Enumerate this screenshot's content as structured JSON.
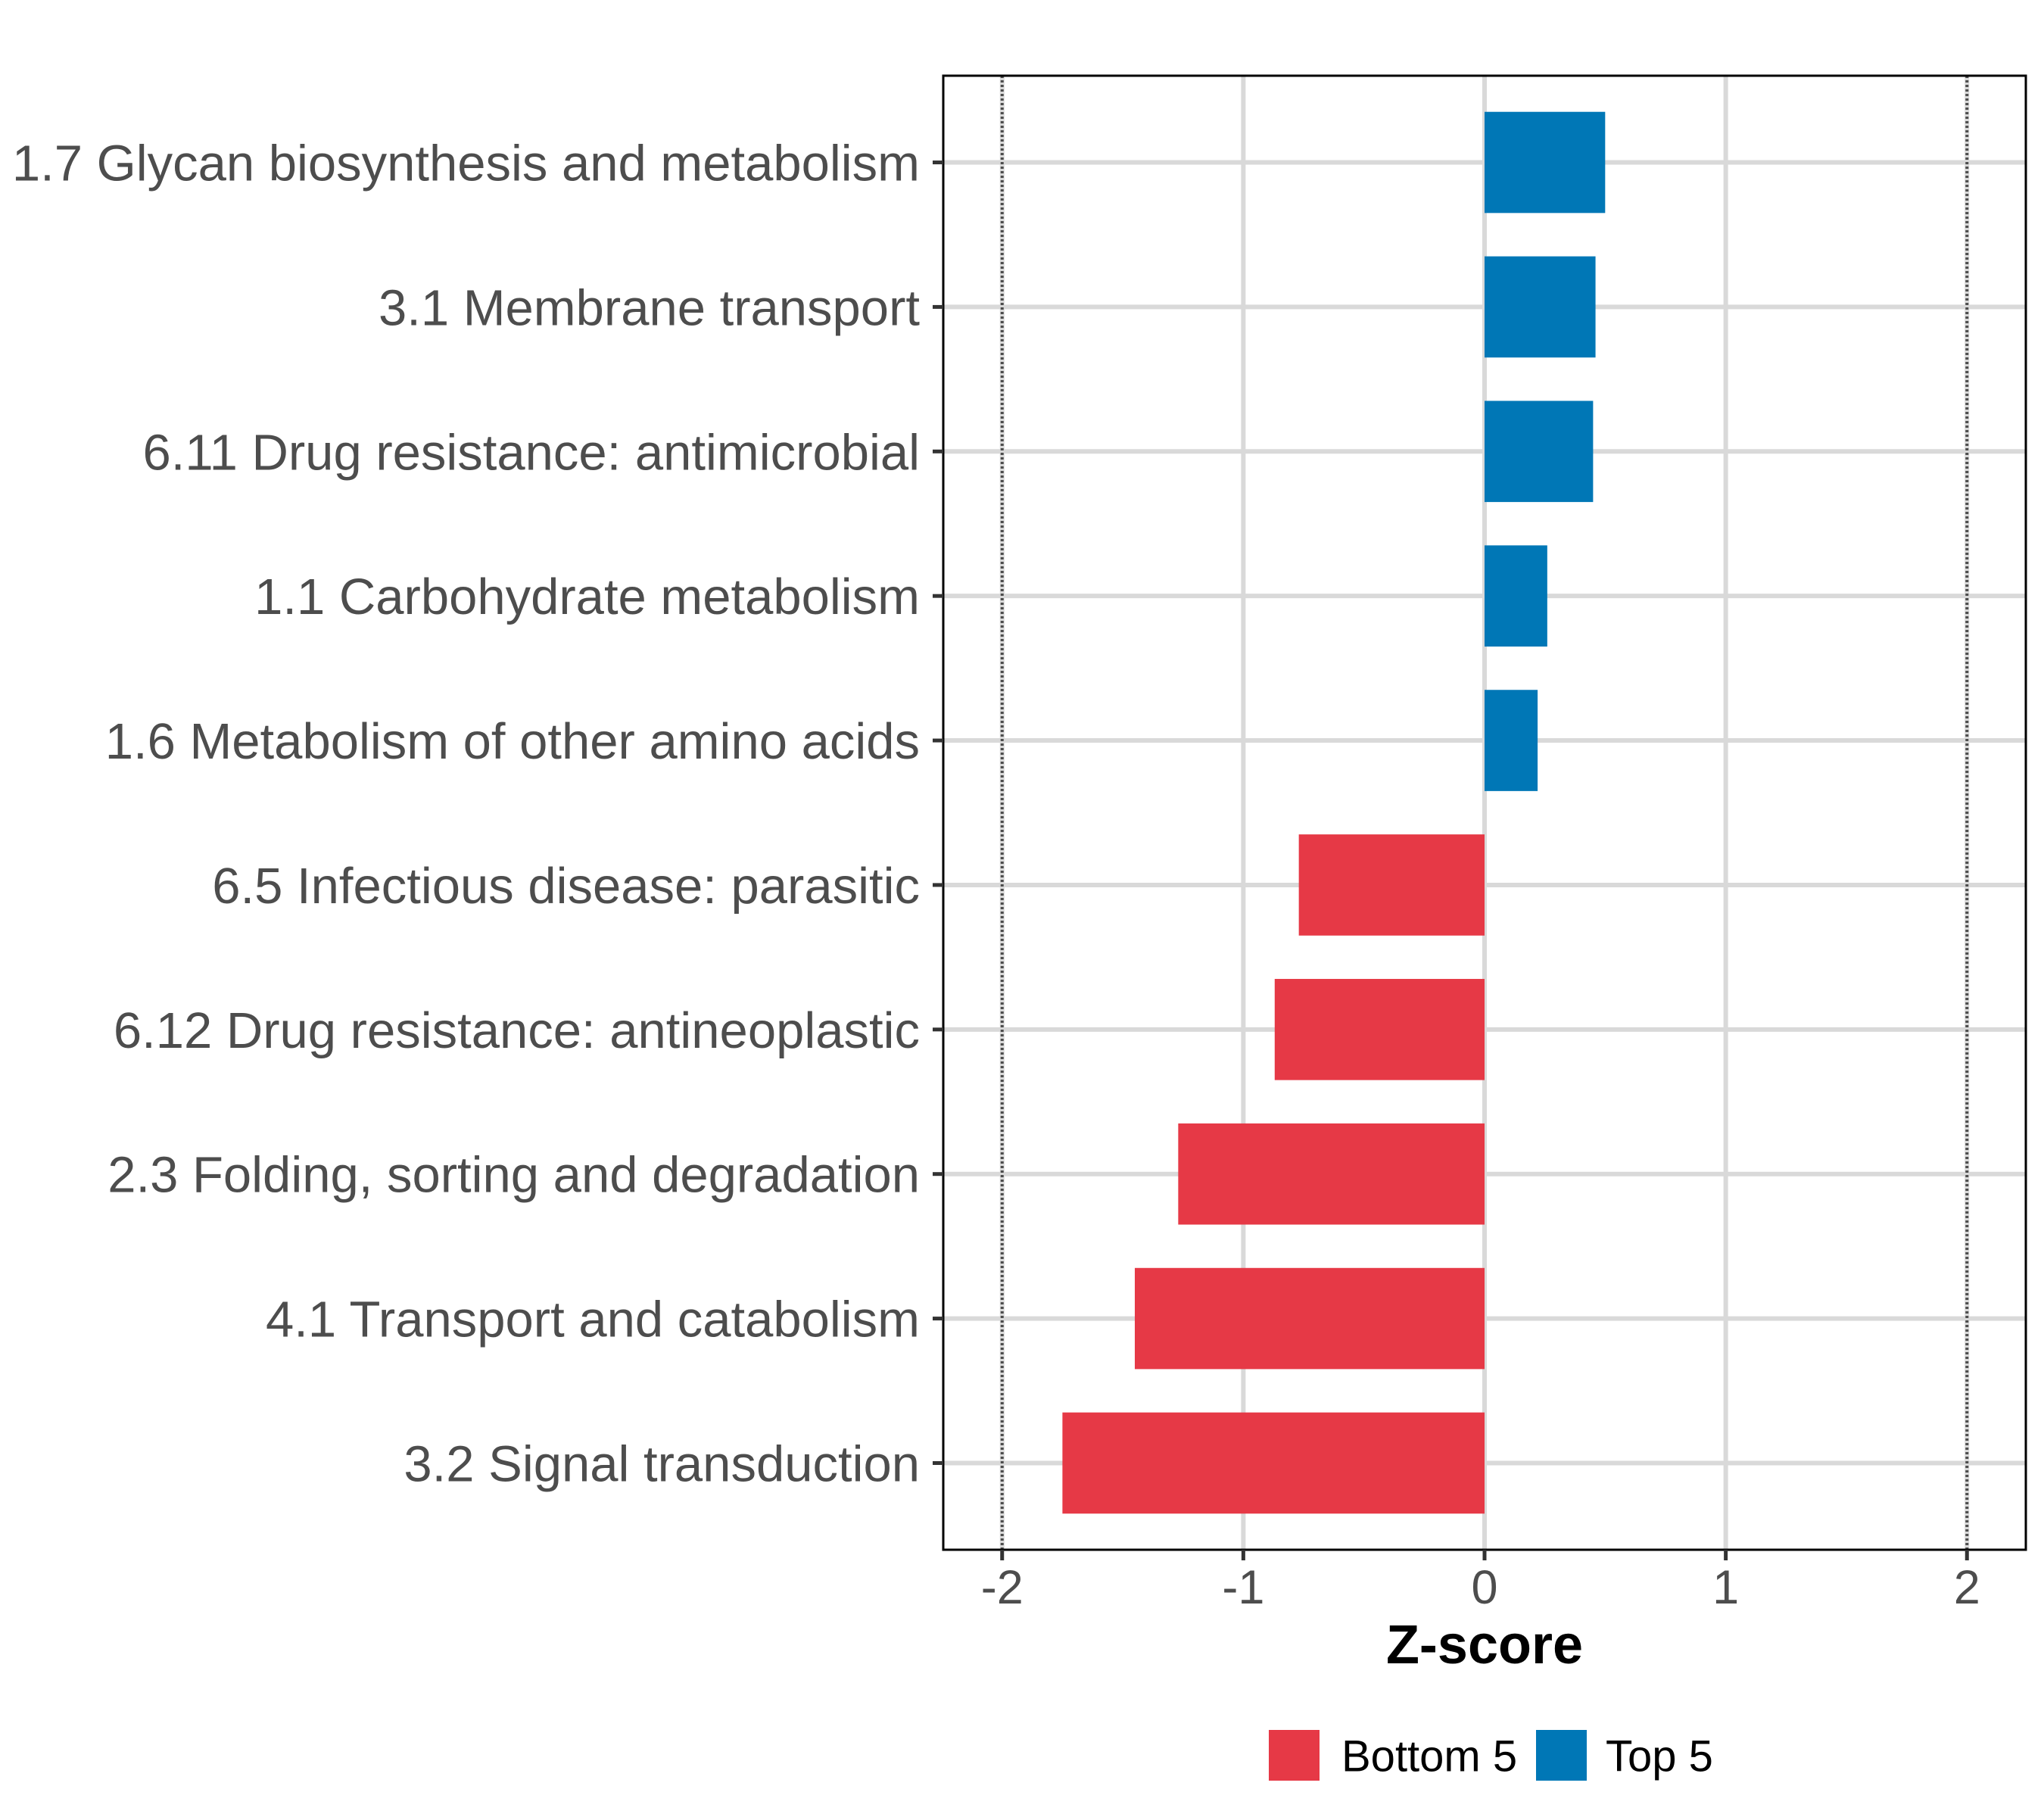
{
  "chart_data": {
    "type": "bar",
    "orientation": "horizontal",
    "title": "",
    "xlabel": "Z-score",
    "ylabel": "",
    "xlim": [
      -2.244,
      2.244
    ],
    "xticks": [
      -2,
      -1,
      0,
      1,
      2
    ],
    "xtick_labels": [
      "-2",
      "-1",
      "0",
      "1",
      "2"
    ],
    "reference_lines": [
      -2,
      2
    ],
    "grid": true,
    "categories": [
      "1.7 Glycan biosynthesis and metabolism",
      "3.1 Membrane transport",
      "6.11 Drug resistance: antimicrobial",
      "1.1 Carbohydrate metabolism",
      "1.6 Metabolism of other amino acids",
      "6.5 Infectious disease: parasitic",
      "6.12 Drug resistance: antineoplastic",
      "2.3 Folding, sorting and degradation",
      "4.1 Transport and catabolism",
      "3.2 Signal transduction"
    ],
    "values": [
      0.5,
      0.46,
      0.45,
      0.26,
      0.22,
      -0.77,
      -0.87,
      -1.27,
      -1.45,
      -1.75
    ],
    "groups": [
      "Top 5",
      "Top 5",
      "Top 5",
      "Top 5",
      "Top 5",
      "Bottom 5",
      "Bottom 5",
      "Bottom 5",
      "Bottom 5",
      "Bottom 5"
    ],
    "legend": {
      "position": "bottom",
      "entries": [
        {
          "label": "Bottom 5",
          "color": "#E63946"
        },
        {
          "label": "Top 5",
          "color": "#0077B6"
        }
      ]
    },
    "colors": {
      "Bottom 5": "#E63946",
      "Top 5": "#0077B6",
      "grid": "#D9D9D9",
      "reference_line": "#4D4D4D",
      "border": "#000000"
    }
  }
}
